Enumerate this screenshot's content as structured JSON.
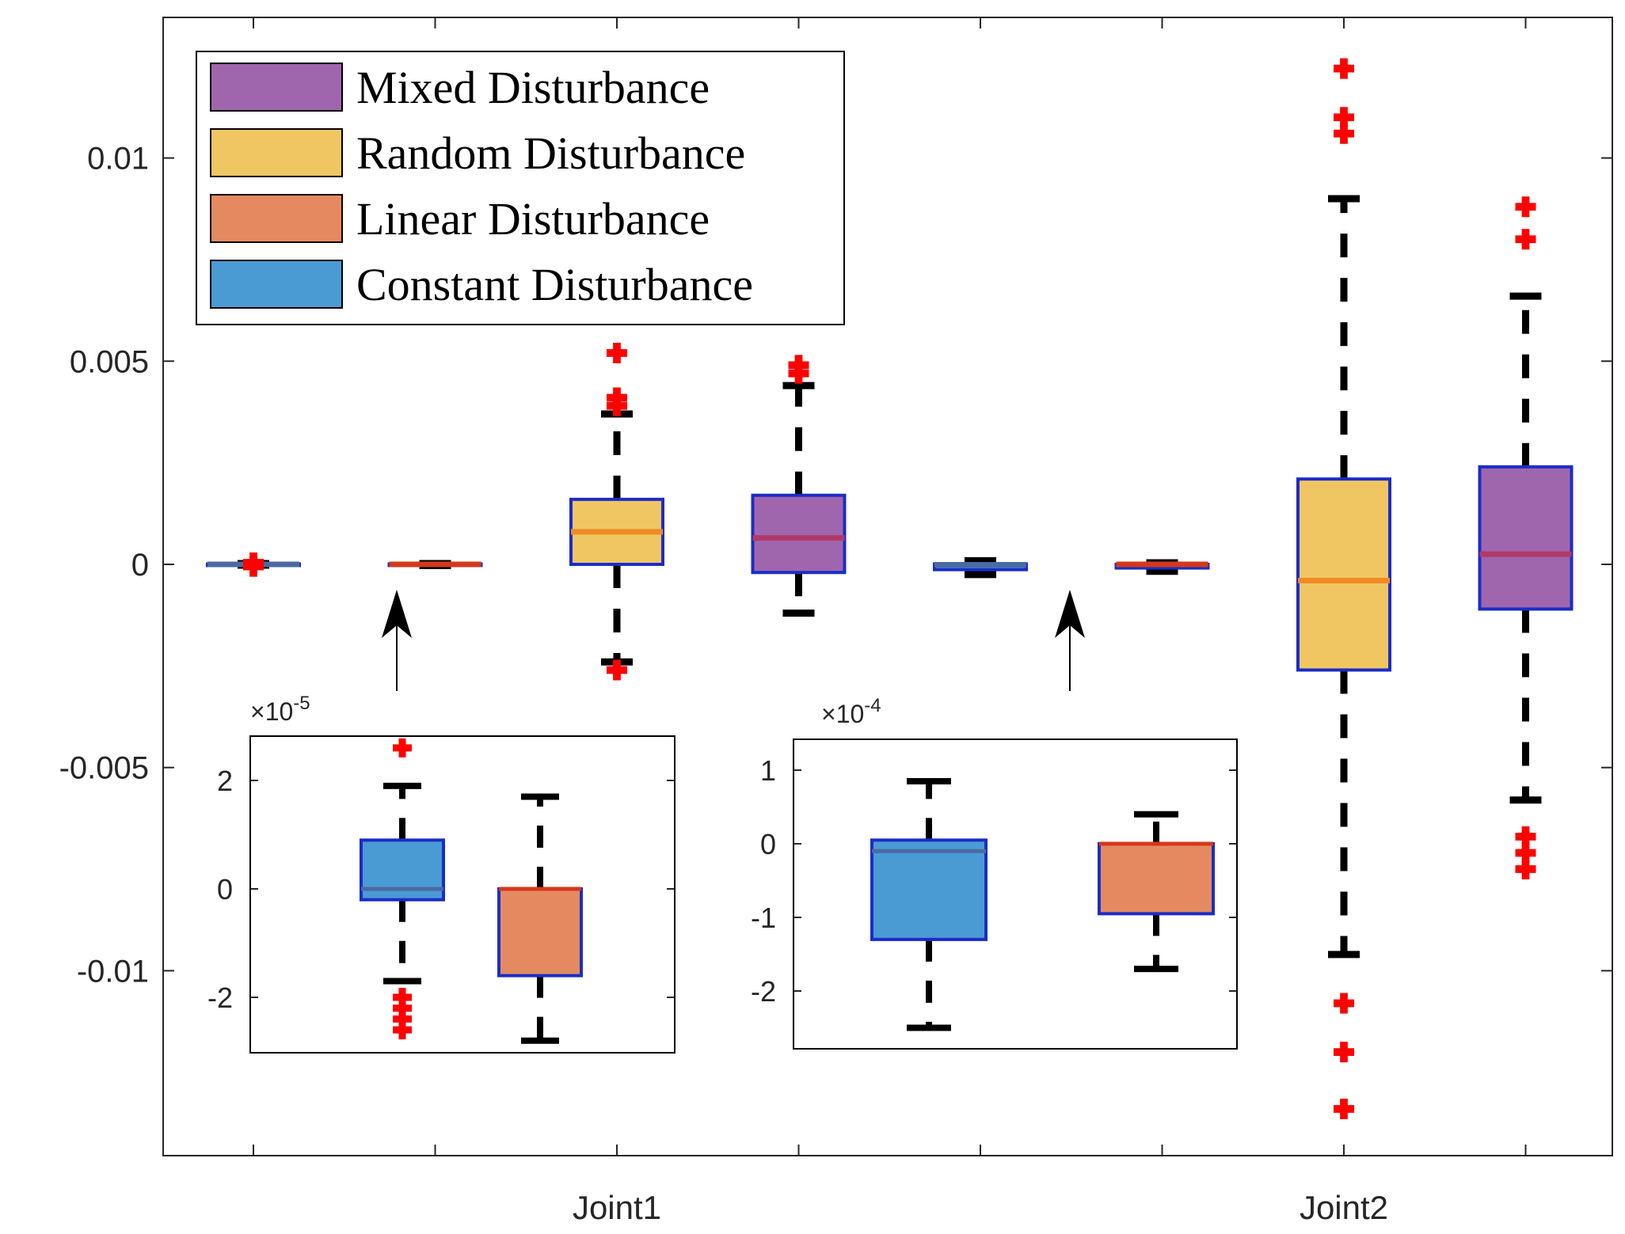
{
  "chart_data": {
    "type": "box",
    "main": {
      "ylim": [
        -0.0145,
        0.0135
      ],
      "yticks": [
        -0.01,
        -0.005,
        0,
        0.005,
        0.01
      ],
      "ytick_labels": [
        "-0.01",
        "-0.005",
        "0",
        "0.005",
        "0.01"
      ],
      "xlim": [
        0.5,
        8.5
      ],
      "xticks": [
        1,
        2,
        3,
        4,
        5,
        6,
        7,
        8
      ],
      "group_labels": [
        {
          "label": "Joint1",
          "x": 3
        },
        {
          "label": "Joint2",
          "x": 7
        }
      ],
      "boxes": [
        {
          "series": "Constant Disturbance",
          "pos": 1,
          "q1": -1e-05,
          "median": 0.0,
          "q3": 1e-05,
          "wlo": -2e-05,
          "whi": 2e-05,
          "outliers": [
            4e-05,
            -5e-05
          ]
        },
        {
          "series": "Linear Disturbance",
          "pos": 2,
          "q1": -2e-05,
          "median": 0.0,
          "q3": 1e-05,
          "wlo": -3e-05,
          "whi": 2e-05,
          "outliers": []
        },
        {
          "series": "Random Disturbance",
          "pos": 3,
          "q1": 0.0,
          "median": 0.0008,
          "q3": 0.0016,
          "wlo": -0.0024,
          "whi": 0.0037,
          "outliers": [
            0.0052,
            0.0041,
            0.0039,
            -0.0026
          ]
        },
        {
          "series": "Mixed Disturbance",
          "pos": 4,
          "q1": -0.0002,
          "median": 0.00065,
          "q3": 0.0017,
          "wlo": -0.0012,
          "whi": 0.0044,
          "outliers": [
            0.0049,
            0.0047
          ]
        },
        {
          "series": "Constant Disturbance",
          "pos": 5,
          "q1": -0.00013,
          "median": -1e-05,
          "q3": 1e-05,
          "wlo": -0.00025,
          "whi": 9e-05,
          "outliers": []
        },
        {
          "series": "Linear Disturbance",
          "pos": 6,
          "q1": -9e-05,
          "median": 0.0,
          "q3": 0.0,
          "wlo": -0.00017,
          "whi": 4e-05,
          "outliers": []
        },
        {
          "series": "Random Disturbance",
          "pos": 7,
          "q1": -0.0026,
          "median": -0.0004,
          "q3": 0.0021,
          "wlo": -0.0096,
          "whi": 0.009,
          "outliers": [
            0.0122,
            0.011,
            0.0106,
            -0.0108,
            -0.012,
            -0.0134
          ]
        },
        {
          "series": "Mixed Disturbance",
          "pos": 8,
          "q1": -0.0011,
          "median": 0.00025,
          "q3": 0.0024,
          "wlo": -0.0058,
          "whi": 0.0066,
          "outliers": [
            0.0088,
            0.008,
            -0.0067,
            -0.0071,
            -0.0075
          ]
        }
      ]
    },
    "legend": {
      "placement": "top-left",
      "entries": [
        {
          "label": "Mixed  Disturbance",
          "series": "Mixed Disturbance"
        },
        {
          "label": "Random Disturbance",
          "series": "Random Disturbance"
        },
        {
          "label": "Linear Disturbance",
          "series": "Linear Disturbance"
        },
        {
          "label": "Constant Disturbance",
          "series": "Constant Disturbance"
        }
      ]
    },
    "insets": [
      {
        "name": "joint1-inset",
        "target_pos": 2,
        "exponent": "×10",
        "exponent_power": "-5",
        "ylim": [
          -3.1,
          3.0
        ],
        "yticks": [
          -2,
          0,
          2
        ],
        "ytick_labels": [
          "-2",
          "0",
          "2"
        ],
        "boxes": [
          {
            "series": "Constant Disturbance",
            "q1": -0.2,
            "median": 0.0,
            "q3": 0.9,
            "wlo": -1.7,
            "whi": 1.9,
            "outliers": [
              2.6,
              -2.0,
              -2.2,
              -2.4,
              -2.6
            ]
          },
          {
            "series": "Linear Disturbance",
            "q1": -1.6,
            "median": 0.0,
            "q3": 0.0,
            "wlo": -2.8,
            "whi": 1.7,
            "outliers": []
          }
        ]
      },
      {
        "name": "joint2-inset",
        "target_pos": 6,
        "exponent": "×10",
        "exponent_power": "-4",
        "ylim": [
          -2.8,
          1.4
        ],
        "yticks": [
          -2,
          -1,
          0,
          1
        ],
        "ytick_labels": [
          "-2",
          "-1",
          "0",
          "1"
        ],
        "boxes": [
          {
            "series": "Constant Disturbance",
            "q1": -1.3,
            "median": -0.1,
            "q3": 0.05,
            "wlo": -2.5,
            "whi": 0.85,
            "outliers": []
          },
          {
            "series": "Linear Disturbance",
            "q1": -0.95,
            "median": 0.0,
            "q3": 0.0,
            "wlo": -1.7,
            "whi": 0.4,
            "outliers": []
          }
        ]
      }
    ]
  },
  "colors": {
    "Mixed Disturbance": "#a066ad",
    "Random Disturbance": "#f0c662",
    "Linear Disturbance": "#e58a60",
    "Constant Disturbance": "#4a9ad4",
    "box_edge": "#1b2cc8",
    "outlier": "#ff0000",
    "whisker": "#000000",
    "median": {
      "Mixed Disturbance": "#b03a6a",
      "Random Disturbance": "#f08a24",
      "Linear Disturbance": "#d3391a",
      "Constant Disturbance": "#4a6aa0"
    }
  }
}
